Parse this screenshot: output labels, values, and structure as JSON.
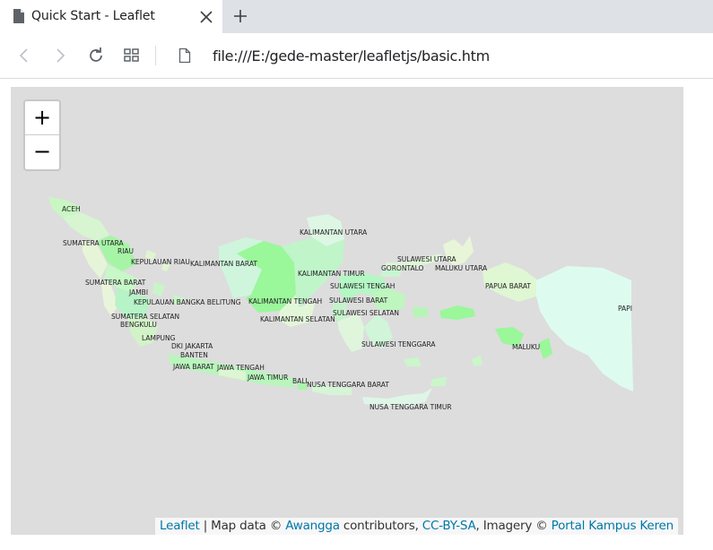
{
  "browser": {
    "tab_title": "Quick Start - Leaflet",
    "address": "file:///E:/gede-master/leafletjs/basic.htm",
    "icons": [
      "page-icon",
      "close-icon",
      "new-tab-icon",
      "back-icon",
      "forward-icon",
      "reload-icon",
      "apps-icon"
    ]
  },
  "map": {
    "zoom_in": "+",
    "zoom_out": "−",
    "attribution": {
      "leaflet": "Leaflet",
      "sep1": " | Map data © ",
      "awangga": "Awangga",
      "sep2": " contributors, ",
      "license": "CC-BY-SA",
      "sep3": ", Imagery © ",
      "imagery": "Portal Kampus Keren"
    },
    "labels": {
      "aceh": "ACEH",
      "sumut": "SUMATERA UTARA",
      "riau": "RIAU",
      "kepri": "KEPULAUAN RIAU",
      "kalbar": "KALIMANTAN BARAT",
      "kalut": "KALIMANTAN UTARA",
      "sumbar": "SUMATERA BARAT",
      "jambi": "JAMBI",
      "babel": "KEPULAUAN BANGKA BELITUNG",
      "kalteng": "KALIMANTAN TENGAH",
      "kaltim": "KALIMANTAN TIMUR",
      "sulut": "SULAWESI UTARA",
      "gorontalo": "GORONTALO",
      "malut": "MALUKU UTARA",
      "sulteng": "SULAWESI TENGAH",
      "papbar": "PAPUA BARAT",
      "sulbar": "SULAWESI BARAT",
      "papua": "PAPI",
      "sumsel": "SUMATERA SELATAN",
      "bengkulu": "BENGKULU",
      "kalsel": "KALIMANTAN SELATAN",
      "sulsel": "SULAWESI SELATAN",
      "lampung": "LAMPUNG",
      "jakarta": "DKI JAKARTA",
      "banten": "BANTEN",
      "sultra": "SULAWESI TENGGARA",
      "maluku": "MALUKU",
      "jabar": "JAWA BARAT",
      "jateng": "JAWA TENGAH",
      "jatim": "JAWA TIMUR",
      "bali": "BALI",
      "ntb": "NUSA TENGGARA BARAT",
      "ntt": "NUSA TENGGARA TIMUR"
    }
  }
}
